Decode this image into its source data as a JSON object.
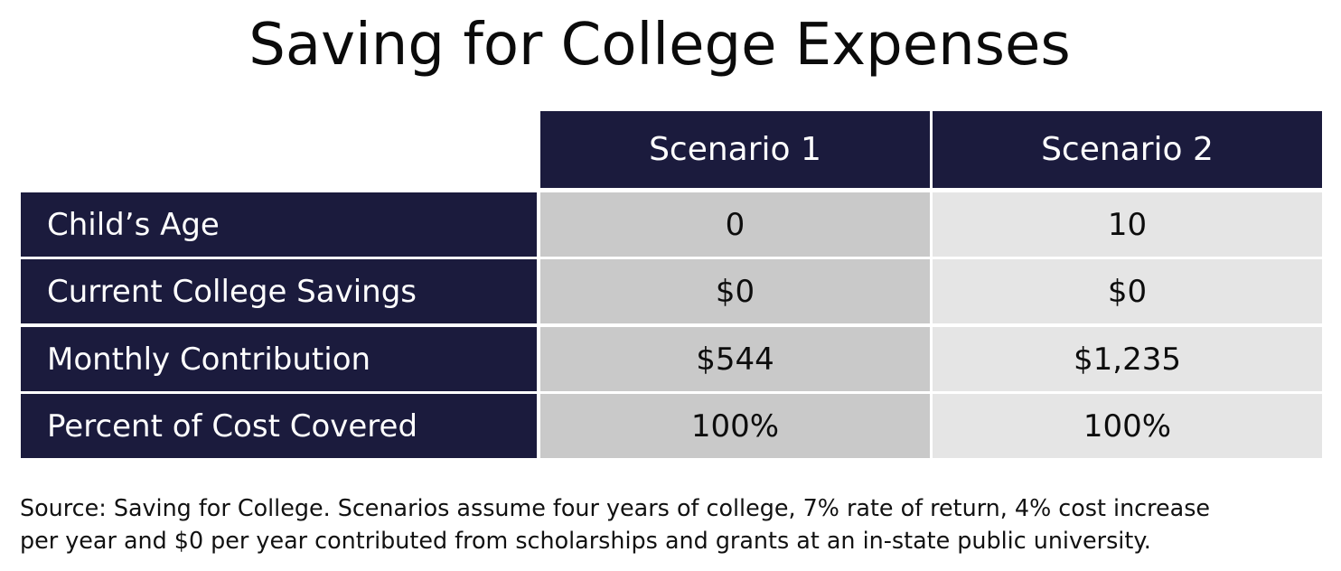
{
  "chart_data": {
    "type": "table",
    "title": "Saving for College Expenses",
    "columns": [
      "Scenario 1",
      "Scenario 2"
    ],
    "rows": [
      {
        "label": "Child’s Age",
        "values": [
          "0",
          "10"
        ]
      },
      {
        "label": "Current College Savings",
        "values": [
          "$0",
          "$0"
        ]
      },
      {
        "label": "Monthly Contribution",
        "values": [
          "$544",
          "$1,235"
        ]
      },
      {
        "label": "Percent of Cost Covered",
        "values": [
          "100%",
          "100%"
        ]
      }
    ],
    "footnote_lines": [
      "Source: Saving for College. Scenarios assume four years of college, 7% rate of return, 4% cost increase",
      "per year and $0 per year contributed from scholarships and grants at an in-state public university."
    ]
  },
  "colors": {
    "header": "#1b1b3d",
    "row_label": "#1b1b3d",
    "scenario_1_cells": "#c9c9c9",
    "scenario_2_cells": "#e5e5e5",
    "text_dark": "#111111",
    "text_light": "#ffffff"
  }
}
